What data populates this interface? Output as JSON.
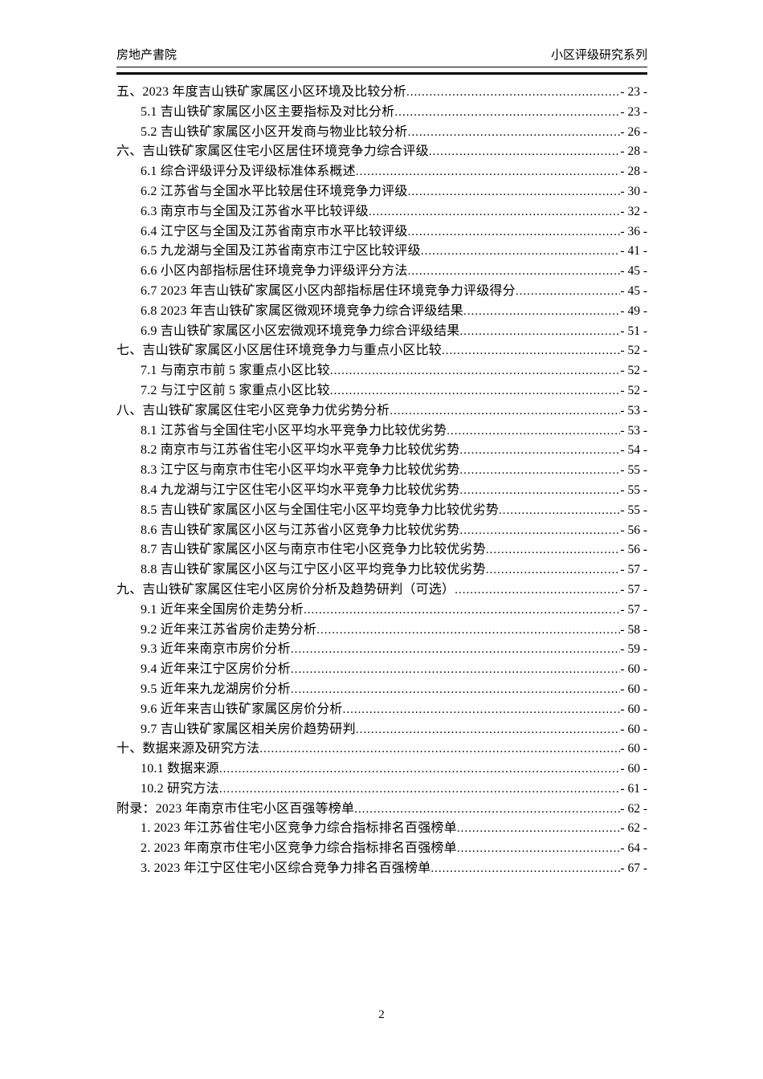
{
  "page": {
    "header": {
      "left": "房地产書院",
      "right": "小区评级研究系列"
    },
    "footer": {
      "page_number": "2"
    }
  },
  "toc": {
    "entries": [
      {
        "level": 1,
        "title": "五、2023 年度吉山铁矿家属区小区环境及比较分析",
        "page": "- 23 -"
      },
      {
        "level": 2,
        "title": "5.1 吉山铁矿家属区小区主要指标及对比分析",
        "page": "- 23 -"
      },
      {
        "level": 2,
        "title": "5.2 吉山铁矿家属区小区开发商与物业比较分析",
        "page": "- 26 -"
      },
      {
        "level": 1,
        "title": "六、吉山铁矿家属区住宅小区居住环境竞争力综合评级",
        "page": "- 28 -"
      },
      {
        "level": 2,
        "title": "6.1 综合评级评分及评级标准体系概述",
        "page": "- 28 -"
      },
      {
        "level": 2,
        "title": "6.2 江苏省与全国水平比较居住环境竞争力评级",
        "page": "- 30 -"
      },
      {
        "level": 2,
        "title": "6.3 南京市与全国及江苏省水平比较评级",
        "page": "- 32 -"
      },
      {
        "level": 2,
        "title": "6.4 江宁区与全国及江苏省南京市水平比较评级",
        "page": "- 36 -"
      },
      {
        "level": 2,
        "title": "6.5 九龙湖与全国及江苏省南京市江宁区比较评级",
        "page": "- 41 -"
      },
      {
        "level": 2,
        "title": "6.6 小区内部指标居住环境竞争力评级评分方法",
        "page": "- 45 -"
      },
      {
        "level": 2,
        "title": "6.7 2023 年吉山铁矿家属区小区内部指标居住环境竞争力评级得分",
        "page": "- 45 -"
      },
      {
        "level": 2,
        "title": "6.8 2023 年吉山铁矿家属区微观环境竞争力综合评级结果",
        "page": "- 49 -"
      },
      {
        "level": 2,
        "title": "6.9 吉山铁矿家属区小区宏微观环境竞争力综合评级结果",
        "page": "- 51 -"
      },
      {
        "level": 1,
        "title": "七、吉山铁矿家属区小区居住环境竞争力与重点小区比较",
        "page": "- 52 -"
      },
      {
        "level": 2,
        "title": "7.1 与南京市前 5 家重点小区比较",
        "page": "- 52 -"
      },
      {
        "level": 2,
        "title": "7.2 与江宁区前 5 家重点小区比较",
        "page": "- 52 -"
      },
      {
        "level": 1,
        "title": "八、吉山铁矿家属区住宅小区竞争力优劣势分析",
        "page": "- 53 -"
      },
      {
        "level": 2,
        "title": "8.1 江苏省与全国住宅小区平均水平竞争力比较优劣势",
        "page": "- 53 -"
      },
      {
        "level": 2,
        "title": "8.2 南京市与江苏省住宅小区平均水平竞争力比较优劣势",
        "page": "- 54 -"
      },
      {
        "level": 2,
        "title": "8.3 江宁区与南京市住宅小区平均水平竞争力比较优劣势",
        "page": "- 55 -"
      },
      {
        "level": 2,
        "title": "8.4 九龙湖与江宁区住宅小区平均水平竞争力比较优劣势",
        "page": "- 55 -"
      },
      {
        "level": 2,
        "title": "8.5 吉山铁矿家属区小区与全国住宅小区平均竞争力比较优劣势",
        "page": "- 55 -"
      },
      {
        "level": 2,
        "title": "8.6 吉山铁矿家属区小区与江苏省小区竞争力比较优劣势",
        "page": "- 56 -"
      },
      {
        "level": 2,
        "title": "8.7 吉山铁矿家属区小区与南京市住宅小区竞争力比较优劣势",
        "page": "- 56 -"
      },
      {
        "level": 2,
        "title": "8.8 吉山铁矿家属区小区与江宁区小区平均竞争力比较优劣势",
        "page": "- 57 -"
      },
      {
        "level": 1,
        "title": "九、吉山铁矿家属区住宅小区房价分析及趋势研判（可选）",
        "page": "- 57 -"
      },
      {
        "level": 2,
        "title": "9.1 近年来全国房价走势分析",
        "page": "- 57 -"
      },
      {
        "level": 2,
        "title": "9.2 近年来江苏省房价走势分析",
        "page": "- 58 -"
      },
      {
        "level": 2,
        "title": "9.3 近年来南京市房价分析",
        "page": "- 59 -"
      },
      {
        "level": 2,
        "title": "9.4 近年来江宁区房价分析",
        "page": "- 60 -"
      },
      {
        "level": 2,
        "title": "9.5 近年来九龙湖房价分析",
        "page": "- 60 -"
      },
      {
        "level": 2,
        "title": "9.6 近年来吉山铁矿家属区房价分析",
        "page": "- 60 -"
      },
      {
        "level": 2,
        "title": "9.7 吉山铁矿家属区相关房价趋势研判",
        "page": "- 60 -"
      },
      {
        "level": 1,
        "title": "十、数据来源及研究方法",
        "page": "- 60 -"
      },
      {
        "level": 2,
        "title": "10.1 数据来源",
        "page": "- 60 -"
      },
      {
        "level": 2,
        "title": "10.2 研究方法",
        "page": "- 61 -"
      },
      {
        "level": 1,
        "title": "附录：2023 年南京市住宅小区百强等榜单",
        "page": "- 62 -"
      },
      {
        "level": 2,
        "title": "1.  2023 年江苏省住宅小区竞争力综合指标排名百强榜单",
        "page": "- 62 -"
      },
      {
        "level": 2,
        "title": "2.  2023 年南京市住宅小区竞争力综合指标排名百强榜单",
        "page": "- 64 -"
      },
      {
        "level": 2,
        "title": "3.  2023 年江宁区住宅小区综合竞争力排名百强榜单",
        "page": "- 67 -"
      }
    ]
  }
}
